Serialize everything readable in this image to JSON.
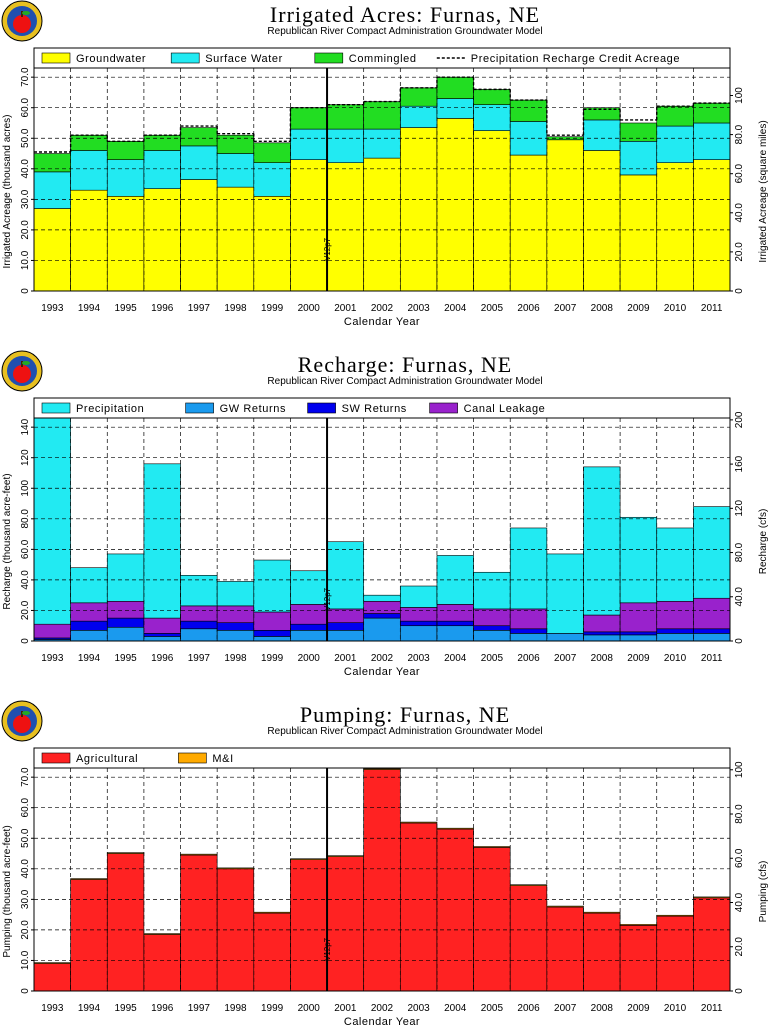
{
  "colors": {
    "groundwater": "#ffff00",
    "surface_water": "#22eaf2",
    "commingled": "#22dd22",
    "precipitation": "#22eaf2",
    "gw_returns": "#1a9aee",
    "sw_returns": "#0000ee",
    "canal_leakage": "#9922cc",
    "agricultural": "#ff2222",
    "mi": "#ffaa00"
  },
  "chart_data": [
    {
      "type": "area",
      "title": "Irrigated  Acres:  Furnas,  NE",
      "subtitle": "Republican River Compact Administration Groundwater Model",
      "xlabel": "Calendar Year",
      "ylabel": "Irrigated Acreage (thousand acres)",
      "y2label": "Irrigated Acreage (square miles)",
      "stacked": true,
      "step": true,
      "grid": true,
      "legend_placement": "top",
      "categories": [
        "1993",
        "1994",
        "1995",
        "1996",
        "1997",
        "1998",
        "1999",
        "2000",
        "2001",
        "2002",
        "2003",
        "2004",
        "2005",
        "2006",
        "2007",
        "2008",
        "2009",
        "2010",
        "2011"
      ],
      "ylim": [
        0,
        73
      ],
      "y_ticks": [
        0,
        10,
        20,
        30,
        40,
        50,
        60,
        70
      ],
      "y_tick_labels": [
        "0",
        "10.0",
        "20.0",
        "30.0",
        "40.0",
        "50.0",
        "60.0",
        "70.0"
      ],
      "y2lim": [
        0,
        114.06
      ],
      "y2_ticks": [
        0,
        20,
        40,
        60,
        80,
        100
      ],
      "y2_tick_labels": [
        "0",
        "20.0",
        "40.0",
        "60.0",
        "80.0",
        "100"
      ],
      "marker": {
        "label": "V12p7",
        "x_after_index": 7.35
      },
      "series": [
        {
          "name": "Groundwater",
          "color_key": "groundwater",
          "values": [
            27,
            33,
            31,
            33.5,
            36.5,
            34,
            31,
            43,
            42,
            43.5,
            53.5,
            56.5,
            52.5,
            44.5,
            49.5,
            46,
            38,
            42,
            43
          ]
        },
        {
          "name": "Surface Water",
          "color_key": "surface_water",
          "values": [
            12,
            13,
            12,
            12.5,
            11,
            11,
            11,
            10,
            11,
            9.5,
            7,
            6.5,
            8.5,
            11,
            0,
            10,
            11,
            12,
            12
          ]
        },
        {
          "name": "Commingled",
          "color_key": "commingled",
          "values": [
            6,
            5,
            6,
            5,
            6,
            6,
            6.5,
            7,
            8,
            9,
            6,
            7,
            5,
            7,
            1,
            4,
            6,
            6.5,
            6.5
          ]
        }
      ],
      "overlay": {
        "name": "Precipitation Recharge Credit Acreage",
        "style": "dashed",
        "values": [
          45.5,
          51,
          49,
          51,
          54,
          51.5,
          49,
          60,
          61,
          62,
          66.5,
          70,
          66,
          62.5,
          51,
          59.5,
          56,
          60.5,
          61.5
        ]
      }
    },
    {
      "type": "area",
      "title": "Recharge:  Furnas,  NE",
      "subtitle": "Republican River Compact Administration Groundwater Model",
      "xlabel": "Calendar Year",
      "ylabel": "Recharge (thousand acre-feet)",
      "y2label": "Recharge (cfs)",
      "stacked": true,
      "step": true,
      "grid": true,
      "legend_placement": "top",
      "categories": [
        "1993",
        "1994",
        "1995",
        "1996",
        "1997",
        "1998",
        "1999",
        "2000",
        "2001",
        "2002",
        "2003",
        "2004",
        "2005",
        "2006",
        "2007",
        "2008",
        "2009",
        "2010",
        "2011"
      ],
      "ylim": [
        0,
        146
      ],
      "y_ticks": [
        0,
        20,
        40,
        60,
        80,
        100,
        120,
        140
      ],
      "y_tick_labels": [
        "0",
        "20.0",
        "40.0",
        "60.0",
        "80.0",
        "100",
        "120",
        "140"
      ],
      "y2lim": [
        0,
        201.7
      ],
      "y2_ticks": [
        0,
        40,
        80,
        120,
        160,
        200
      ],
      "y2_tick_labels": [
        "0",
        "40.0",
        "80.0",
        "120",
        "160",
        "200"
      ],
      "marker": {
        "label": "V12p7",
        "x_after_index": 7.35
      },
      "series": [
        {
          "name": "GW Returns",
          "color_key": "gw_returns",
          "values": [
            1,
            7,
            9,
            3,
            8,
            7,
            3,
            7,
            7,
            15,
            10,
            10,
            7,
            5,
            5,
            4,
            4,
            5,
            5
          ]
        },
        {
          "name": "SW Returns",
          "color_key": "sw_returns",
          "values": [
            1,
            6,
            6,
            2,
            5,
            5,
            4,
            4,
            5,
            3,
            3,
            3,
            3,
            3,
            0,
            2,
            2,
            3,
            3
          ]
        },
        {
          "name": "Canal Leakage",
          "color_key": "canal_leakage",
          "values": [
            9,
            12,
            11,
            10,
            10,
            11,
            12,
            13,
            9,
            8,
            9,
            11,
            11,
            13,
            0,
            11,
            19,
            18,
            20
          ]
        },
        {
          "name": "Precipitation",
          "color_key": "precipitation",
          "values": [
            136,
            23,
            31,
            101,
            20,
            16,
            34,
            22,
            44,
            4,
            14,
            32,
            24,
            53,
            52,
            97,
            56,
            48,
            60
          ]
        }
      ]
    },
    {
      "type": "area",
      "title": "Pumping:  Furnas,  NE",
      "subtitle": "Republican River Compact Administration Groundwater Model",
      "xlabel": "Calendar Year",
      "ylabel": "Pumping (thousand acre-feet)",
      "y2label": "Pumping (cfs)",
      "stacked": true,
      "step": true,
      "grid": true,
      "legend_placement": "top",
      "categories": [
        "1993",
        "1994",
        "1995",
        "1996",
        "1997",
        "1998",
        "1999",
        "2000",
        "2001",
        "2002",
        "2003",
        "2004",
        "2005",
        "2006",
        "2007",
        "2008",
        "2009",
        "2010",
        "2011"
      ],
      "ylim": [
        0,
        73
      ],
      "y_ticks": [
        0,
        10,
        20,
        30,
        40,
        50,
        60,
        70
      ],
      "y_tick_labels": [
        "0",
        "10.0",
        "20.0",
        "30.0",
        "40.0",
        "50.0",
        "60.0",
        "70.0"
      ],
      "y2lim": [
        0,
        100.8
      ],
      "y2_ticks": [
        0,
        20,
        40,
        60,
        80,
        100
      ],
      "y2_tick_labels": [
        "0",
        "20.0",
        "40.0",
        "60.0",
        "80.0",
        "100"
      ],
      "marker": {
        "label": "V12p7",
        "x_after_index": 7.35
      },
      "series": [
        {
          "name": "Agricultural",
          "color_key": "agricultural",
          "values": [
            9,
            36.5,
            45,
            18.5,
            44.5,
            40,
            25.5,
            43,
            44,
            72.5,
            55,
            53,
            47,
            34.5,
            27.5,
            25.5,
            21.5,
            24.5,
            30.5
          ]
        },
        {
          "name": "M&I",
          "color_key": "mi",
          "values": [
            0.3,
            0.3,
            0.3,
            0.3,
            0.3,
            0.3,
            0.3,
            0.3,
            0.3,
            0.3,
            0.3,
            0.3,
            0.3,
            0.3,
            0.3,
            0.3,
            0.3,
            0.3,
            0.3
          ]
        }
      ]
    }
  ]
}
